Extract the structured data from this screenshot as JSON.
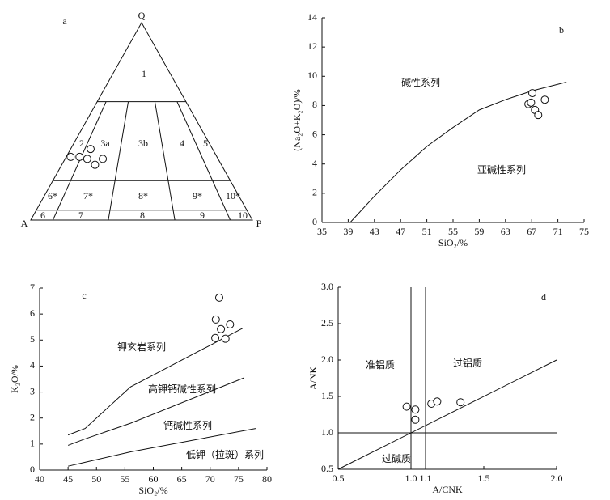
{
  "chart_data": [
    {
      "type": "ternary",
      "panel_label": "a",
      "vertices": {
        "top": "Q",
        "left": "A",
        "right": "P"
      },
      "field_labels": [
        "1",
        "2",
        "3a",
        "3b",
        "4",
        "5",
        "6*",
        "7*",
        "8*",
        "9*",
        "10*",
        "6",
        "7",
        "8",
        "9",
        "10"
      ],
      "q_lines": [
        60,
        20,
        5
      ],
      "ratio_lines": [
        10,
        35,
        65,
        90
      ],
      "points": {
        "Q": [
          32,
          32,
          31,
          36,
          28,
          31
        ],
        "A": [
          66,
          62,
          59,
          55,
          57,
          52
        ],
        "P": [
          2,
          6,
          10,
          9,
          15,
          17
        ]
      }
    },
    {
      "type": "scatter",
      "panel_label": "b",
      "xlabel": "SiO₂/%",
      "ylabel": "(Na₂O+K₂O)/%",
      "xlim": [
        35,
        75
      ],
      "xticks": [
        35,
        39,
        43,
        47,
        51,
        55,
        59,
        63,
        67,
        71,
        75
      ],
      "ylim": [
        0,
        14
      ],
      "yticks": [
        0,
        2,
        4,
        6,
        8,
        10,
        12,
        14
      ],
      "annotations": [
        "碱性系列",
        "亚碱性系列"
      ],
      "lines": [
        {
          "x": [
            39.3,
            43,
            47,
            51,
            55,
            59,
            63,
            67,
            72.3
          ],
          "y": [
            0,
            1.8,
            3.6,
            5.2,
            6.5,
            7.7,
            8.4,
            9.0,
            9.6
          ]
        }
      ],
      "points": {
        "x": [
          66.5,
          66.9,
          67.5,
          67.1,
          69.0,
          68.0
        ],
        "y": [
          8.1,
          8.2,
          7.7,
          8.85,
          8.4,
          7.35
        ]
      }
    },
    {
      "type": "scatter",
      "panel_label": "c",
      "xlabel": "SiO₂/%",
      "ylabel": "K₂O/%",
      "xlim": [
        40,
        80
      ],
      "xticks": [
        40,
        45,
        50,
        55,
        60,
        65,
        70,
        75,
        80
      ],
      "ylim": [
        0,
        7
      ],
      "yticks": [
        0,
        1,
        2,
        3,
        4,
        5,
        6,
        7
      ],
      "annotations": [
        "钾玄岩系列",
        "高钾钙碱性系列",
        "钙碱性系列",
        "低钾（拉斑）系列"
      ],
      "lines": [
        {
          "x": [
            45,
            48,
            56,
            75.7
          ],
          "y": [
            1.35,
            1.6,
            3.2,
            5.45
          ]
        },
        {
          "x": [
            45,
            48,
            56,
            76
          ],
          "y": [
            0.95,
            1.2,
            1.8,
            3.55
          ]
        },
        {
          "x": [
            45,
            48,
            56,
            78
          ],
          "y": [
            0.15,
            0.3,
            0.7,
            1.6
          ]
        }
      ],
      "points": {
        "x": [
          71.6,
          71.0,
          71.9,
          73.5,
          70.9,
          72.7
        ],
        "y": [
          6.63,
          5.79,
          5.42,
          5.6,
          5.08,
          5.05
        ]
      }
    },
    {
      "type": "scatter",
      "panel_label": "d",
      "xlabel": "A/CNK",
      "ylabel": "A/NK",
      "xlim": [
        0.5,
        2.0
      ],
      "xticks": [
        0.5,
        {
          "value": 1,
          "label": "1.0"
        },
        1.1,
        1.5,
        {
          "value": 2,
          "label": "2.0"
        }
      ],
      "ylim": [
        0.5,
        3.0
      ],
      "yticks": [
        0.5,
        {
          "value": 1,
          "label": "1.0"
        },
        1.5,
        {
          "value": 2,
          "label": "2.0"
        },
        2.5,
        {
          "value": 3,
          "label": "3.0"
        }
      ],
      "annotations": [
        "准铝质",
        "过铝质",
        "过碱质"
      ],
      "lines": [
        {
          "x": [
            1,
            1
          ],
          "y": [
            0.5,
            3
          ]
        },
        {
          "x": [
            1.1,
            1.1
          ],
          "y": [
            0.5,
            3
          ]
        },
        {
          "x": [
            0.5,
            2
          ],
          "y": [
            1,
            1
          ]
        },
        {
          "x": [
            0.5,
            2
          ],
          "y": [
            0.5,
            2
          ]
        }
      ],
      "points": {
        "x": [
          0.97,
          1.03,
          1.03,
          1.14,
          1.18,
          1.34
        ],
        "y": [
          1.36,
          1.32,
          1.18,
          1.4,
          1.43,
          1.42
        ]
      }
    }
  ]
}
